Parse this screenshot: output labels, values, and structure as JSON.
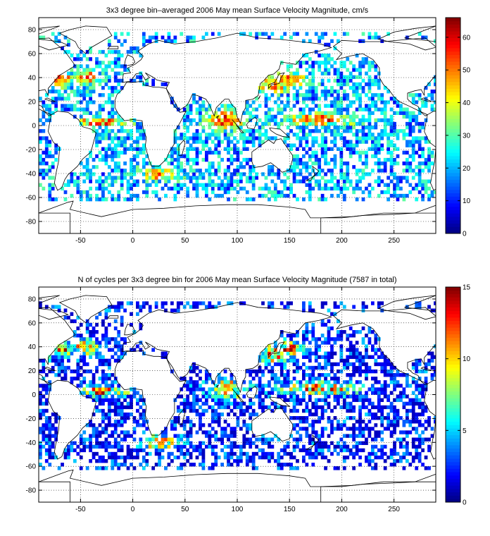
{
  "chart_data": [
    {
      "type": "heatmap",
      "title": "3x3 degree bin–averaged 2006 May mean Surface Velocity Magnitude, cm/s",
      "xlabel": "",
      "ylabel": "",
      "xlim": [
        -90,
        290
      ],
      "ylim": [
        -90,
        90
      ],
      "x_ticks": [
        -50,
        0,
        50,
        100,
        150,
        200,
        250
      ],
      "y_ticks": [
        80,
        60,
        40,
        20,
        0,
        -20,
        -40,
        -60,
        -80
      ],
      "grid": true,
      "grid_style": "dotted",
      "bin_size_deg": 3,
      "colorbar": {
        "range": [
          0,
          66
        ],
        "ticks": [
          0,
          10,
          20,
          30,
          40,
          50,
          60
        ],
        "colormap": "jet",
        "placement": "right"
      },
      "bins_shown": "scattered 3x3 bins over ocean areas, values mostly 10-30, high values (50-66) in Kuroshio, Gulf Stream, equatorial and Agulhas regions"
    },
    {
      "type": "heatmap",
      "title": "N of cycles per 3x3 degree bin for 2006 May mean Surface Velocity Magnitude (7587 in total)",
      "xlabel": "",
      "ylabel": "",
      "xlim": [
        -90,
        290
      ],
      "ylim": [
        -90,
        90
      ],
      "x_ticks": [
        -50,
        0,
        50,
        100,
        150,
        200,
        250
      ],
      "y_ticks": [
        80,
        60,
        40,
        20,
        0,
        -20,
        -40,
        -60,
        -80
      ],
      "grid": true,
      "grid_style": "dotted",
      "bin_size_deg": 3,
      "colorbar": {
        "range": [
          0,
          15
        ],
        "ticks": [
          0,
          5,
          10,
          15
        ],
        "colormap": "jet",
        "placement": "right"
      },
      "bins_shown": "scattered 3x3 bins over ocean areas, counts mostly 1-4, highest counts (10-15) near Japan / Kuroshio"
    }
  ]
}
